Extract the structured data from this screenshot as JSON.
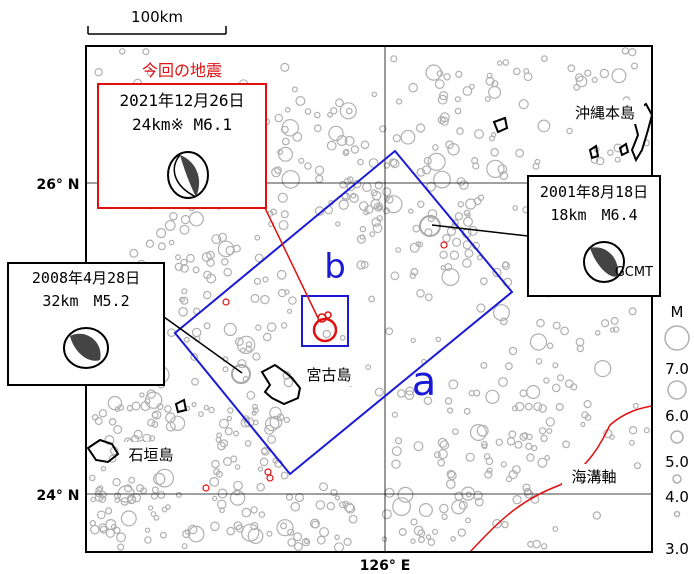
{
  "scale_bar": {
    "label": "100km"
  },
  "axes": {
    "lat_label": "26° N",
    "lat_label_bottom": "24° N",
    "lon_label": "126° E"
  },
  "annotations": {
    "current_quake_header": "今回の地震",
    "current_quake_date": "2021年12月26日",
    "current_quake_detail": "24km※ M6.1",
    "event_2001_date": "2001年8月18日",
    "event_2001_detail": "18km　M6.4",
    "event_2001_source": "GCMT",
    "event_2008_date": "2008年4月28日",
    "event_2008_detail": "32km　M5.2"
  },
  "places": {
    "okinawa": "沖縄本島",
    "miyako": "宮古島",
    "ishigaki": "石垣島",
    "trench": "海溝軸"
  },
  "regions": {
    "a": "a",
    "b": "b"
  },
  "legend": {
    "title": "M",
    "levels": [
      "7.0",
      "6.0",
      "5.0",
      "4.0",
      "3.0"
    ]
  },
  "colors": {
    "region_box": "#1a1ad6",
    "current_event": "#e01010",
    "trench": "#e01010",
    "background_events": "#b0b0b0",
    "frame": "#000000"
  }
}
